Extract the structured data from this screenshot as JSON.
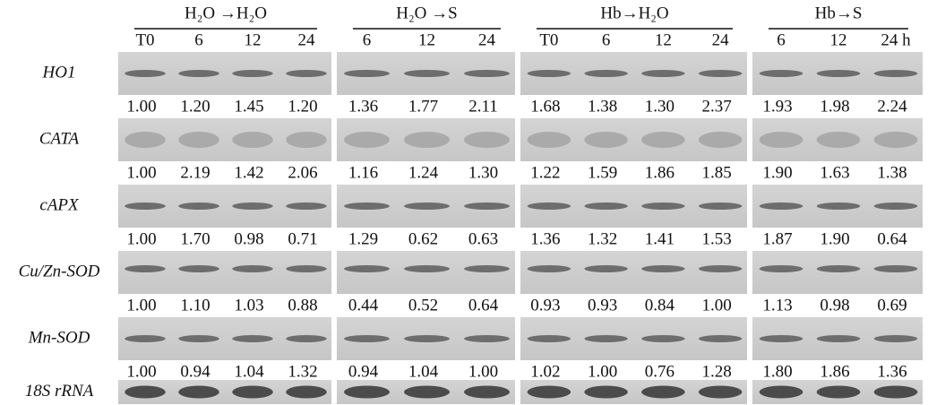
{
  "groups": [
    {
      "label": "H₂O →H₂O",
      "lanes": [
        "T0",
        "6",
        "12",
        "24"
      ]
    },
    {
      "label": "H₂O →S",
      "lanes": [
        "6",
        "12",
        "24"
      ]
    },
    {
      "label": "Hb→H₂O",
      "lanes": [
        "T0",
        "6",
        "12",
        "24"
      ]
    },
    {
      "label": "Hb→S",
      "lanes": [
        "6",
        "12",
        "24 h"
      ]
    }
  ],
  "rows": [
    {
      "gene": "HO1",
      "values": [
        "1.00",
        "1.20",
        "1.45",
        "1.20",
        "1.36",
        "1.77",
        "2.11",
        "1.68",
        "1.38",
        "1.30",
        "2.37",
        "1.93",
        "1.98",
        "2.24"
      ]
    },
    {
      "gene": "CATA",
      "values": [
        "1.00",
        "2.19",
        "1.42",
        "2.06",
        "1.16",
        "1.24",
        "1.30",
        "1.22",
        "1.59",
        "1.86",
        "1.85",
        "1.90",
        "1.63",
        "1.38"
      ]
    },
    {
      "gene": "cAPX",
      "values": [
        "1.00",
        "1.70",
        "0.98",
        "0.71",
        "1.29",
        "0.62",
        "0.63",
        "1.36",
        "1.32",
        "1.41",
        "1.53",
        "1.87",
        "1.90",
        "0.64"
      ]
    },
    {
      "gene": "Cu/Zn-SOD",
      "values": [
        "1.00",
        "1.10",
        "1.03",
        "0.88",
        "0.44",
        "0.52",
        "0.64",
        "0.93",
        "0.93",
        "0.84",
        "1.00",
        "1.13",
        "0.98",
        "0.69"
      ]
    },
    {
      "gene": "Mn-SOD",
      "values": [
        "1.00",
        "0.94",
        "1.04",
        "1.32",
        "0.94",
        "1.04",
        "1.00",
        "1.02",
        "1.00",
        "0.76",
        "1.28",
        "1.80",
        "1.86",
        "1.36"
      ]
    },
    {
      "gene": "18S rRNA"
    }
  ]
}
